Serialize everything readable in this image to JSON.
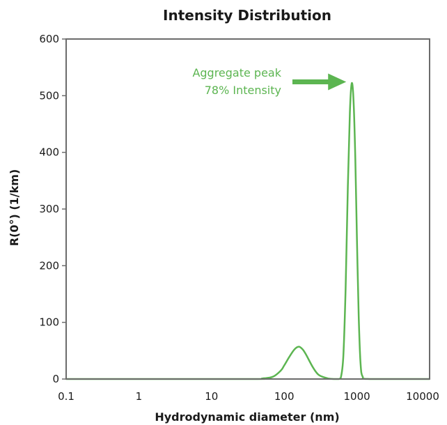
{
  "chart_data": {
    "type": "line",
    "title": "Intensity Distribution",
    "xlabel": "Hydrodynamic diameter (nm)",
    "ylabel": "R(0°) (1/km)",
    "x_scale": "log",
    "xlim": [
      0.1,
      10000
    ],
    "ylim": [
      0,
      600
    ],
    "x_ticks": [
      0.1,
      1,
      10,
      100,
      1000,
      10000
    ],
    "x_tick_labels": [
      "0.1",
      "1",
      "10",
      "100",
      "1000",
      "10000"
    ],
    "y_ticks": [
      0,
      100,
      200,
      300,
      400,
      500,
      600
    ],
    "y_tick_labels": [
      "0",
      "100",
      "200",
      "300",
      "400",
      "500",
      "600"
    ],
    "grid": false,
    "line_color": "#5cb551",
    "series": [
      {
        "x": [
          0.1,
          30,
          50,
          70,
          90,
          100,
          120,
          140,
          160,
          180,
          200,
          250,
          300,
          400,
          500,
          560,
          600,
          650,
          700,
          750,
          800,
          850,
          900,
          950,
          1000,
          1060,
          1120,
          1200,
          1500,
          10000
        ],
        "y": [
          0,
          0,
          1,
          4,
          15,
          24,
          41,
          53,
          57,
          52,
          43,
          20,
          7,
          1,
          0,
          0,
          2,
          40,
          160,
          340,
          470,
          522,
          490,
          390,
          250,
          110,
          30,
          4,
          0,
          0
        ]
      }
    ],
    "annotations": [
      {
        "lines": [
          "Aggregate peak",
          "78% Intensity"
        ],
        "color": "#5cb551",
        "arrow_to": {
          "x": 850,
          "y": 522
        }
      }
    ]
  }
}
